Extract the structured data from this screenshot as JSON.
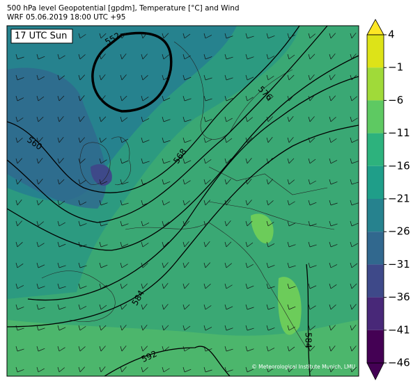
{
  "header": {
    "title": "500 hPa level Geopotential [gpdm], Temperature [°C] and Wind",
    "subtitle": "WRF 05.06.2019 18:00 UTC +95"
  },
  "map": {
    "time_label": "17 UTC Sun",
    "contour_labels": [
      "552",
      "560",
      "568",
      "576",
      "584",
      "584",
      "592"
    ],
    "credit": "© Meteorological Institute Munich, LMU"
  },
  "colorbar": {
    "ticks": [
      4,
      {
        "value": -1,
        "label": "−1"
      },
      {
        "value": -6,
        "label": "−6"
      },
      {
        "value": -11,
        "label": "−11"
      },
      {
        "value": -16,
        "label": "−16"
      },
      {
        "value": -21,
        "label": "−21"
      },
      {
        "value": -26,
        "label": "−26"
      },
      {
        "value": -31,
        "label": "−31"
      },
      {
        "value": -36,
        "label": "−36"
      },
      {
        "value": -41,
        "label": "−41"
      },
      {
        "value": -46,
        "label": "−46"
      }
    ],
    "colors": [
      "#dde318",
      "#a0da39",
      "#5ec962",
      "#2db27d",
      "#1f9e89",
      "#26828e",
      "#31688e",
      "#3e4989",
      "#482878",
      "#440154"
    ],
    "extend_colors": [
      "#fde725",
      "#440154"
    ]
  }
}
